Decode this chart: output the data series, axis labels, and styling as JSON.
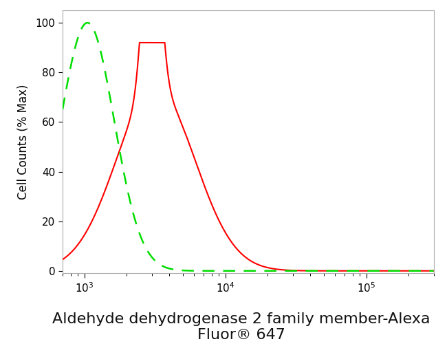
{
  "title_line1": "Aldehyde dehydrogenase 2 family member-Alexa",
  "title_line2": "Fluor® 647",
  "ylabel": "Cell Counts (% Max)",
  "xlim_log": [
    700,
    300000
  ],
  "ylim": [
    -1,
    105
  ],
  "background_color": "#ffffff",
  "plot_bg_color": "#ffffff",
  "red_curve": {
    "color": "#ff0000",
    "spike_peak_x": 3000,
    "spike_peak_y": 92,
    "spike_sigma_log": 0.055,
    "broad_peak_x": 3200,
    "broad_peak_y": 80,
    "broad_sigma_log": 0.28
  },
  "green_curve": {
    "color": "#00dd00",
    "peak_x": 1050,
    "peak_y": 100,
    "sigma_log": 0.19
  },
  "title_fontsize": 16,
  "axis_label_fontsize": 12,
  "tick_fontsize": 11
}
